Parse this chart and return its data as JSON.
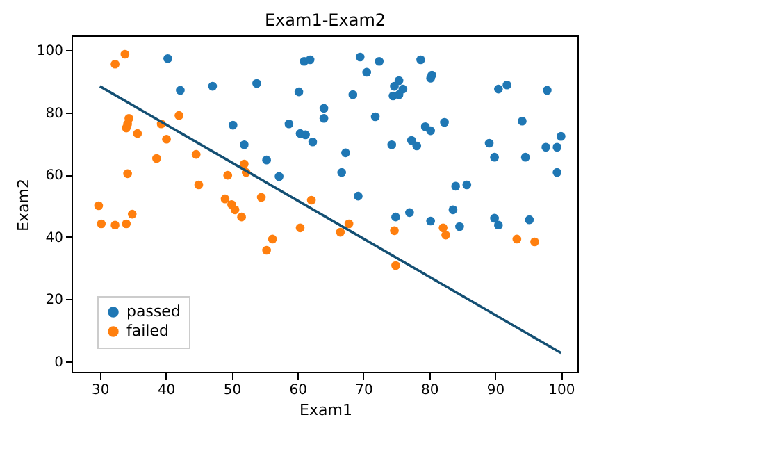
{
  "chart_data": {
    "type": "scatter",
    "title": "Exam1-Exam2",
    "xlabel": "Exam1",
    "ylabel": "Exam2",
    "xlim": [
      25.8,
      102.6
    ],
    "ylim": [
      -3.6,
      104.5
    ],
    "xticks": [
      30,
      40,
      50,
      60,
      70,
      80,
      90,
      100
    ],
    "yticks": [
      0,
      20,
      40,
      60,
      80,
      100
    ],
    "grid": false,
    "legend": "bottom left",
    "series": [
      {
        "name": "passed",
        "color": "#1f77b4",
        "marker": "circle",
        "x": [
          40.3,
          42.2,
          47.1,
          53.8,
          50.2,
          51.9,
          55.3,
          57.2,
          58.7,
          61,
          61.9,
          69.5,
          72.4,
          70.5,
          78.7,
          80.4,
          80.2,
          75.4,
          74.7,
          76,
          74.5,
          75.4,
          60.2,
          68.4,
          64,
          64,
          71.8,
          60.4,
          61.2,
          62.3,
          67.3,
          66.7,
          69.2,
          74.3,
          77.3,
          78.1,
          79.4,
          80.2,
          82.3,
          90.5,
          91.8,
          97.9,
          94.1,
          89.1,
          89.9,
          94.6,
          97.7,
          99.4,
          100,
          99.4,
          84,
          85.7,
          83.6,
          84.6,
          80.2,
          77,
          74.9,
          89.9,
          90.5,
          95.2
        ],
        "values": [
          97.3,
          87.1,
          88.4,
          89.3,
          75.9,
          69.6,
          64.7,
          59.4,
          76.3,
          96.4,
          96.9,
          97.8,
          96.4,
          92.9,
          96.9,
          92,
          91,
          90.2,
          88.4,
          87.5,
          85.3,
          85.7,
          86.6,
          85.7,
          81.3,
          78.1,
          78.6,
          73.2,
          72.8,
          70.5,
          67,
          60.7,
          53.1,
          69.6,
          71,
          69.2,
          75.4,
          74.1,
          76.8,
          87.5,
          88.8,
          87.1,
          77.2,
          70.1,
          65.6,
          65.6,
          68.8,
          68.8,
          72.3,
          60.7,
          56.3,
          56.7,
          48.7,
          43.3,
          45.1,
          47.8,
          46.4,
          46,
          43.8,
          45.5
        ]
      },
      {
        "name": "failed",
        "color": "#ff7f0e",
        "marker": "circle",
        "x": [
          33.8,
          32.3,
          34.4,
          34.2,
          34,
          35.7,
          42,
          39.3,
          40.1,
          38.6,
          44.6,
          34.2,
          49.4,
          51.9,
          52.2,
          45,
          54.5,
          49,
          50,
          50.5,
          51.5,
          29.8,
          30.2,
          32.3,
          34,
          34.9,
          55.3,
          56.2,
          62.1,
          60.4,
          66.5,
          67.8,
          74.7,
          74.9,
          82.1,
          82.5,
          93.3,
          96
        ],
        "values": [
          98.7,
          95.5,
          78.1,
          76.3,
          75,
          73.2,
          79,
          76.3,
          71.4,
          65.2,
          66.5,
          60.3,
          59.8,
          63.4,
          60.7,
          56.7,
          52.7,
          52.2,
          50.4,
          48.7,
          46.4,
          50,
          44.2,
          43.8,
          44.2,
          47.3,
          35.7,
          39.3,
          51.8,
          42.9,
          41.5,
          44.2,
          42,
          30.8,
          42.9,
          40.6,
          39.3,
          38.4
        ]
      },
      {
        "type": "line",
        "color": "#134f73",
        "marker": "none",
        "line_style": "solid",
        "x": [
          30,
          100
        ],
        "values": [
          88.4,
          2.7
        ]
      }
    ]
  }
}
